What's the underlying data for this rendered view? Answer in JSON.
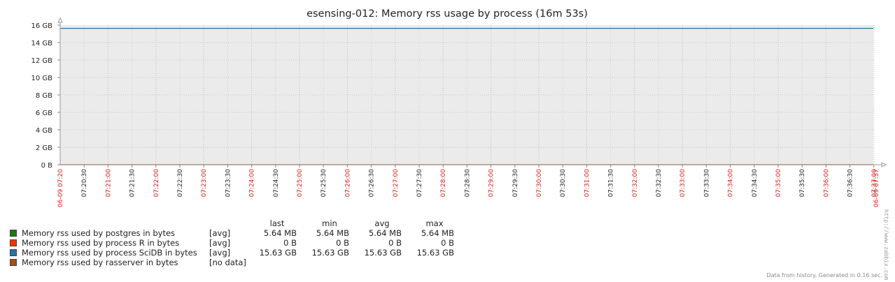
{
  "chart_data": {
    "type": "line",
    "title": "esensing-012: Memory rss usage by process (16m 53s)",
    "xlabel": "",
    "ylabel": "",
    "ylim": [
      0,
      16
    ],
    "y_unit": "GB",
    "y_ticks": [
      "0 B",
      "2 GB",
      "4 GB",
      "6 GB",
      "8 GB",
      "10 GB",
      "12 GB",
      "14 GB",
      "16 GB"
    ],
    "x_start_label": "06-09 07:20",
    "x_end_label": "06-09 07:37",
    "x_ticks": [
      "07:20:30",
      "07:21:00",
      "07:21:30",
      "07:22:00",
      "07:22:30",
      "07:23:00",
      "07:23:30",
      "07:24:00",
      "07:24:30",
      "07:25:00",
      "07:25:30",
      "07:26:00",
      "07:26:30",
      "07:27:00",
      "07:27:30",
      "07:28:00",
      "07:28:30",
      "07:29:00",
      "07:29:30",
      "07:30:00",
      "07:30:30",
      "07:31:00",
      "07:31:30",
      "07:32:00",
      "07:32:30",
      "07:33:00",
      "07:33:30",
      "07:34:00",
      "07:34:30",
      "07:35:00",
      "07:35:30",
      "07:36:00",
      "07:36:30",
      "07:37:00"
    ],
    "grid": true,
    "legend_placement": "bottom-left",
    "legend_headers": {
      "last": "last",
      "min": "min",
      "avg": "avg",
      "max": "max"
    },
    "series": [
      {
        "name": "Memory rss used by postgres in bytes",
        "color": "#1A7C11",
        "func": "[avg]",
        "last": "5.64 MB",
        "min": "5.64 MB",
        "avg": "5.64 MB",
        "max": "5.64 MB",
        "value": 0.0055
      },
      {
        "name": "Memory rss used by process R in bytes",
        "color": "#F63100",
        "func": "[avg]",
        "last": "0 B",
        "min": "0 B",
        "avg": "0 B",
        "max": "0 B",
        "value": 0
      },
      {
        "name": "Memory rss used by process SciDB in bytes",
        "color": "#2774A4",
        "func": "[avg]",
        "last": "15.63 GB",
        "min": "15.63 GB",
        "avg": "15.63 GB",
        "max": "15.63 GB",
        "value": 15.63
      },
      {
        "name": "Memory rss used by rasserver in bytes",
        "color": "#A54F10",
        "func": "[no data]",
        "last": "",
        "min": "",
        "avg": "",
        "max": "",
        "value": null
      }
    ]
  },
  "footer_text": "Data from history. Generated in 0.16 sec.",
  "watermark": "http://www.zabbix.com"
}
